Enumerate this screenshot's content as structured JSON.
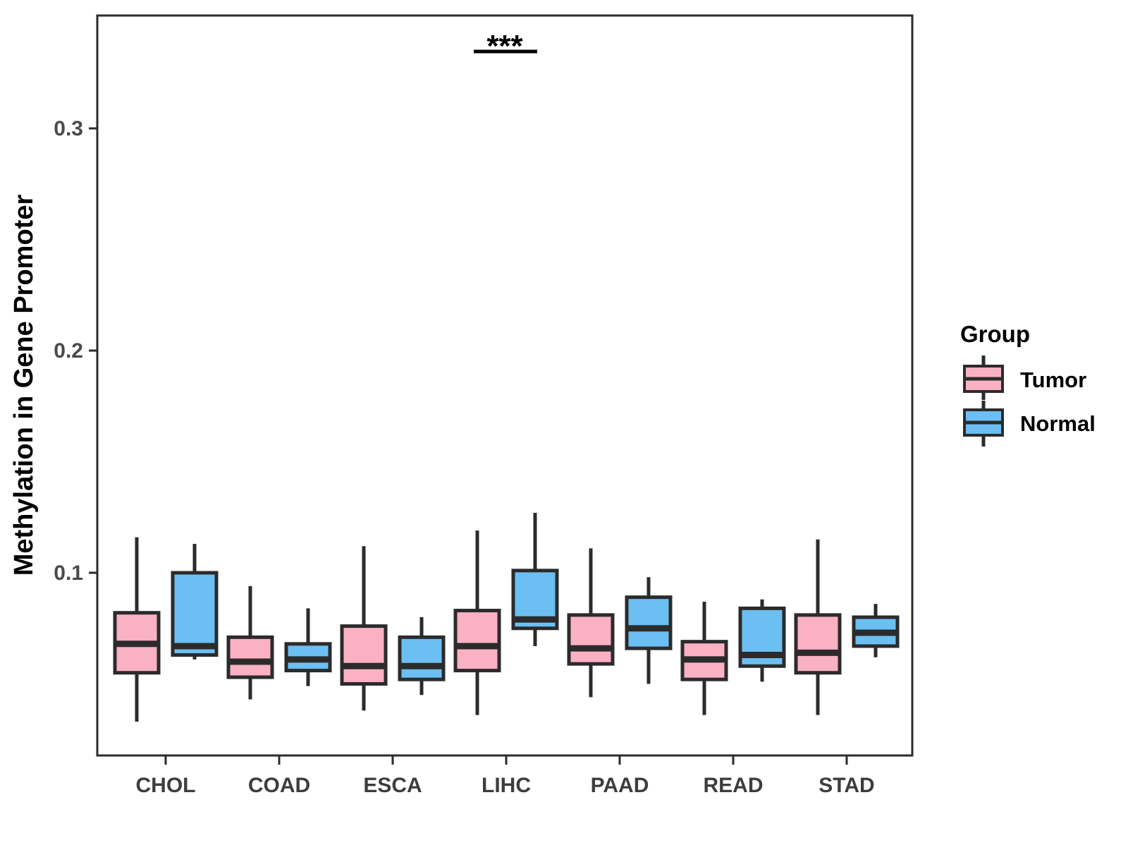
{
  "figure_title": "",
  "colors": {
    "tumor_fill": "#FAB1C3",
    "normal_fill": "#6CBFF2",
    "box_border": "#2B2B2B",
    "axis_line": "#2B2B2B",
    "tick_text": "#4A4A4A",
    "background": "#FFFFFF"
  },
  "legend": {
    "title": "Group",
    "position": "right",
    "items": [
      {
        "label": "Tumor",
        "color": "#FAB1C3"
      },
      {
        "label": "Normal",
        "color": "#6CBFF2"
      }
    ]
  },
  "chart_data": {
    "type": "grouped_boxplot",
    "title": "",
    "xlabel": "",
    "ylabel": "Methylation in Gene Promoter",
    "grid": false,
    "legend_position": "right",
    "categories": [
      "CHOL",
      "COAD",
      "ESCA",
      "LIHC",
      "PAAD",
      "READ",
      "STAD"
    ],
    "y_ticks": [
      "0.1",
      "0.2",
      "0.3"
    ],
    "y_tick_values": [
      0.1,
      0.2,
      0.3
    ],
    "ylim": [
      0.018,
      0.351
    ],
    "significance": {
      "category": "LIHC",
      "label": "***",
      "compares": [
        "Tumor",
        "Normal"
      ]
    },
    "series": [
      {
        "name": "Tumor",
        "color": "#FAB1C3",
        "boxes": [
          {
            "category": "CHOL",
            "whisker_low": 0.033,
            "q1": 0.055,
            "median": 0.068,
            "q3": 0.082,
            "whisker_high": 0.116
          },
          {
            "category": "COAD",
            "whisker_low": 0.043,
            "q1": 0.053,
            "median": 0.06,
            "q3": 0.071,
            "whisker_high": 0.094
          },
          {
            "category": "ESCA",
            "whisker_low": 0.038,
            "q1": 0.05,
            "median": 0.058,
            "q3": 0.076,
            "whisker_high": 0.112
          },
          {
            "category": "LIHC",
            "whisker_low": 0.036,
            "q1": 0.056,
            "median": 0.067,
            "q3": 0.083,
            "whisker_high": 0.119
          },
          {
            "category": "PAAD",
            "whisker_low": 0.044,
            "q1": 0.059,
            "median": 0.066,
            "q3": 0.081,
            "whisker_high": 0.111
          },
          {
            "category": "READ",
            "whisker_low": 0.036,
            "q1": 0.052,
            "median": 0.061,
            "q3": 0.069,
            "whisker_high": 0.087
          },
          {
            "category": "STAD",
            "whisker_low": 0.036,
            "q1": 0.055,
            "median": 0.064,
            "q3": 0.081,
            "whisker_high": 0.115
          }
        ]
      },
      {
        "name": "Normal",
        "color": "#6CBFF2",
        "boxes": [
          {
            "category": "CHOL",
            "whisker_low": 0.061,
            "q1": 0.063,
            "median": 0.067,
            "q3": 0.1,
            "whisker_high": 0.113
          },
          {
            "category": "COAD",
            "whisker_low": 0.049,
            "q1": 0.056,
            "median": 0.061,
            "q3": 0.068,
            "whisker_high": 0.084
          },
          {
            "category": "ESCA",
            "whisker_low": 0.045,
            "q1": 0.052,
            "median": 0.058,
            "q3": 0.071,
            "whisker_high": 0.08
          },
          {
            "category": "LIHC",
            "whisker_low": 0.067,
            "q1": 0.075,
            "median": 0.079,
            "q3": 0.101,
            "whisker_high": 0.127
          },
          {
            "category": "PAAD",
            "whisker_low": 0.05,
            "q1": 0.066,
            "median": 0.075,
            "q3": 0.089,
            "whisker_high": 0.098
          },
          {
            "category": "READ",
            "whisker_low": 0.051,
            "q1": 0.058,
            "median": 0.063,
            "q3": 0.084,
            "whisker_high": 0.088
          },
          {
            "category": "STAD",
            "whisker_low": 0.062,
            "q1": 0.067,
            "median": 0.073,
            "q3": 0.08,
            "whisker_high": 0.086
          }
        ]
      }
    ]
  }
}
